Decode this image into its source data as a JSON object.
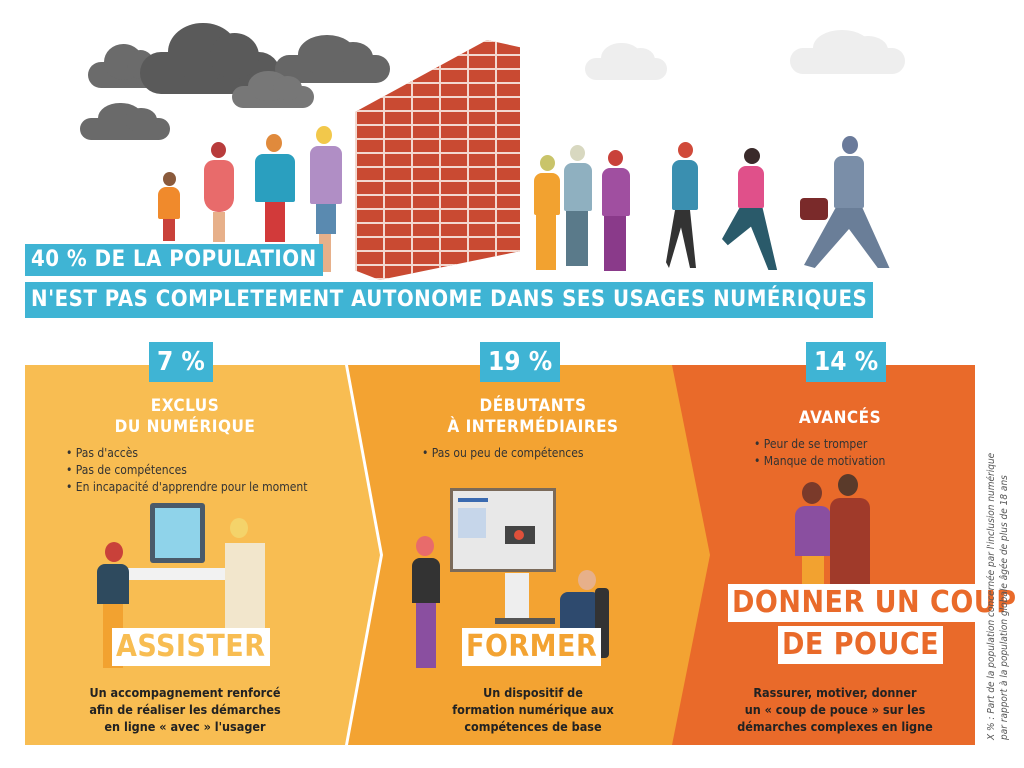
{
  "header": {
    "line1": "40 % DE LA POPULATION",
    "line2": "N'EST PAS COMPLETEMENT AUTONOME DANS SES USAGES NUMÉRIQUES"
  },
  "colors": {
    "accent_blue": "#3fb4d4",
    "panel1": "#f8bd52",
    "panel2": "#f3a332",
    "panel3": "#e96a2a",
    "brick": "#c94a32"
  },
  "panels": [
    {
      "percent": "7 %",
      "title_line1": "EXCLUS",
      "title_line2": "DU NUMÉRIQUE",
      "bullets": [
        "Pas d'accès",
        "Pas de compétences",
        "En incapacité d'apprendre pour le moment"
      ],
      "action": "ASSISTER",
      "desc_line1": "Un accompagnement renforcé",
      "desc_line2": "afin de réaliser les démarches",
      "desc_line3": "en ligne « avec » l'usager"
    },
    {
      "percent": "19 %",
      "title_line1": "DÉBUTANTS",
      "title_line2": "À INTERMÉDIAIRES",
      "bullets": [
        "Pas ou peu de compétences"
      ],
      "action": "FORMER",
      "desc_line1": "Un dispositif de",
      "desc_line2": "formation numérique aux",
      "desc_line3": "compétences de base"
    },
    {
      "percent": "14 %",
      "title_line1": "AVANCÉS",
      "bullets": [
        "Peur de se tromper",
        "Manque de motivation"
      ],
      "action_line1": "DONNER UN COUP",
      "action_line2": "DE POUCE",
      "desc_line1": "Rassurer, motiver, donner",
      "desc_line2": "un « coup de pouce » sur les",
      "desc_line3": "démarches complexes en ligne"
    }
  ],
  "footnote": {
    "line1": "X % : Part de la population concernée par l'inclusion numérique",
    "line2": "par rapport à la population globale âgée de plus de 18 ans"
  }
}
